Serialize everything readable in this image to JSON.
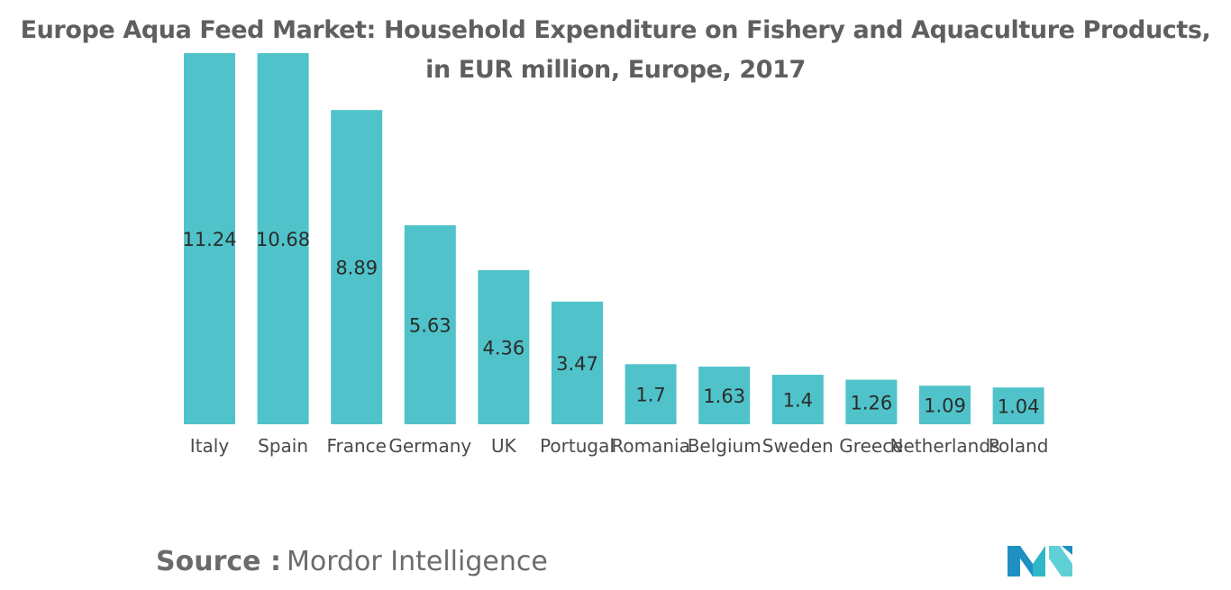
{
  "chart_data": {
    "type": "bar",
    "title_line1": "Europe Aqua Feed Market: Household Expenditure on Fishery and Aquaculture Products,",
    "title_line2": "in EUR million, Europe, 2017",
    "categories": [
      "Italy",
      "Spain",
      "France",
      "Germany",
      "UK",
      "Portugal",
      "Romania",
      "Belgium",
      "Sweden",
      "Greece",
      "Netherlands",
      "Poland"
    ],
    "values": [
      11.24,
      10.68,
      8.89,
      5.63,
      4.36,
      3.47,
      1.7,
      1.63,
      1.4,
      1.26,
      1.09,
      1.04
    ],
    "value_labels": [
      "11.24",
      "10.68",
      "8.89",
      "5.63",
      "4.36",
      "3.47",
      "1.7",
      "1.63",
      "1.4",
      "1.26",
      "1.09",
      "1.04"
    ],
    "xlabel": "",
    "ylabel": "",
    "ylim": [
      0,
      10.5
    ],
    "grid": false,
    "legend": "none",
    "colors": {
      "bar": "#4fc3c9",
      "value_text": "#2b2b2b",
      "tick_text": "#4a4a4a"
    }
  },
  "source": {
    "label": "Source :",
    "name": "Mordor Intelligence"
  },
  "logo": {
    "icon": "mordor-intelligence-logo",
    "colors": [
      "#1f8fc4",
      "#2fb6c8",
      "#5fd0d6"
    ]
  }
}
